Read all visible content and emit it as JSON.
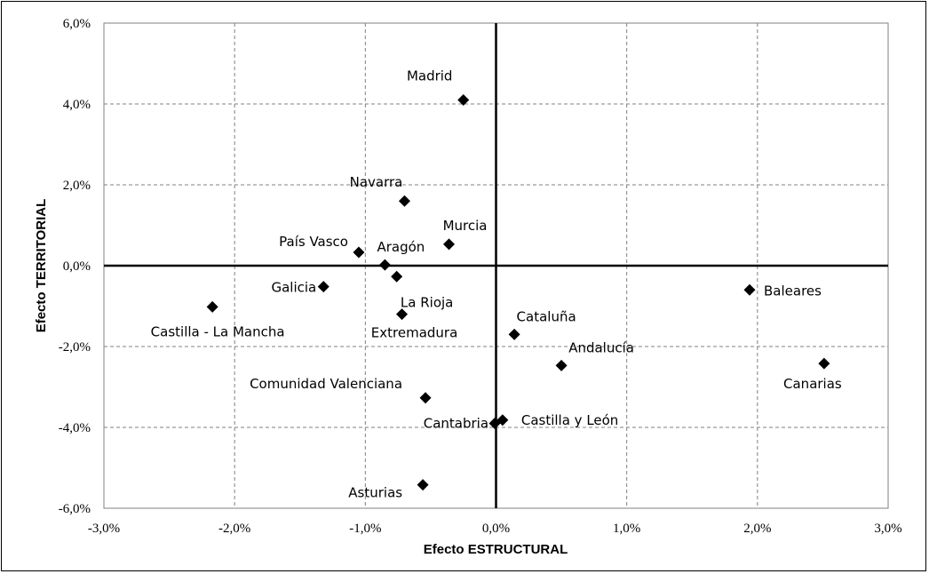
{
  "chart_data": {
    "type": "scatter",
    "title": "",
    "xlabel": "Efecto ESTRUCTURAL",
    "ylabel": "Efecto TERRITORIAL",
    "xlim": [
      -3.0,
      3.0
    ],
    "ylim": [
      -6.0,
      6.0
    ],
    "x_ticks": [
      -3.0,
      -2.0,
      -1.0,
      0.0,
      1.0,
      2.0,
      3.0
    ],
    "y_ticks": [
      -6.0,
      -4.0,
      -2.0,
      0.0,
      2.0,
      4.0,
      6.0
    ],
    "x_tick_labels": [
      "-3,0%",
      "-2,0%",
      "-1,0%",
      "0,0%",
      "1,0%",
      "2,0%",
      "3,0%"
    ],
    "y_tick_labels": [
      "-6,0%",
      "-4,0%",
      "-2,0%",
      "0,0%",
      "2,0%",
      "4,0%",
      "6,0%"
    ],
    "grid": true,
    "marker": "diamond",
    "marker_color": "#000000",
    "points": [
      {
        "label": "Madrid",
        "x": -0.25,
        "y": 4.1
      },
      {
        "label": "Navarra",
        "x": -0.7,
        "y": 1.6
      },
      {
        "label": "Murcia",
        "x": -0.36,
        "y": 0.53
      },
      {
        "label": "País Vasco",
        "x": -1.05,
        "y": 0.33
      },
      {
        "label": "Aragón",
        "x": -0.85,
        "y": 0.02
      },
      {
        "label": "La Rioja",
        "x": -0.76,
        "y": -0.27
      },
      {
        "label": "Galicia",
        "x": -1.32,
        "y": -0.52
      },
      {
        "label": "Castilla - La Mancha",
        "x": -2.17,
        "y": -1.02
      },
      {
        "label": "Extremadura",
        "x": -0.72,
        "y": -1.2
      },
      {
        "label": "Baleares",
        "x": 1.94,
        "y": -0.6
      },
      {
        "label": "Cataluña",
        "x": 0.14,
        "y": -1.7
      },
      {
        "label": "Andalucía",
        "x": 0.5,
        "y": -2.47
      },
      {
        "label": "Canarias",
        "x": 2.51,
        "y": -2.42
      },
      {
        "label": "Comunidad  Valenciana",
        "x": -0.54,
        "y": -3.27
      },
      {
        "label": "Cantabria",
        "x": -0.01,
        "y": -3.9
      },
      {
        "label": "Castilla y León",
        "x": 0.05,
        "y": -3.82
      },
      {
        "label": "Asturias",
        "x": -0.56,
        "y": -5.42
      }
    ]
  }
}
